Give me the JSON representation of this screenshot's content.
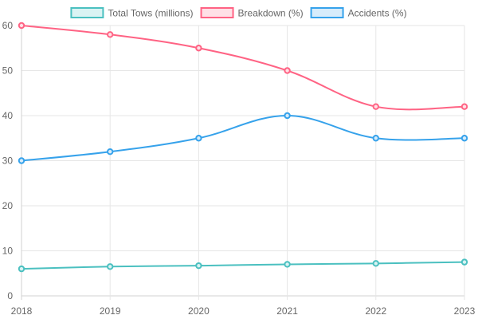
{
  "chart_data": {
    "type": "line",
    "x": [
      "2018",
      "2019",
      "2020",
      "2021",
      "2022",
      "2023"
    ],
    "ylim": [
      0,
      60
    ],
    "y_ticks": [
      0,
      10,
      20,
      30,
      40,
      50,
      60
    ],
    "grid": true,
    "legend_position": "top",
    "series": [
      {
        "name": "Total Tows (millions)",
        "values": [
          6.0,
          6.5,
          6.7,
          7.0,
          7.2,
          7.5
        ],
        "color": "#4bc0c0",
        "fill": "#daf3f3"
      },
      {
        "name": "Breakdown (%)",
        "values": [
          60,
          58,
          55,
          50,
          42,
          42
        ],
        "color": "#ff6384",
        "fill": "#ffe0e6"
      },
      {
        "name": "Accidents (%)",
        "values": [
          30,
          32,
          35,
          40,
          35,
          35
        ],
        "color": "#36a2eb",
        "fill": "#d7ecfb"
      }
    ]
  }
}
